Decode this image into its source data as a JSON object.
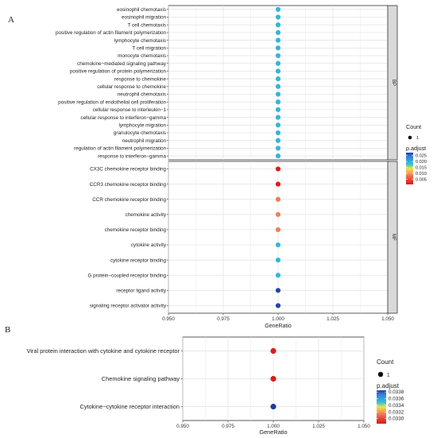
{
  "chart_data": [
    {
      "panel_letter": "A",
      "type": "scatter",
      "xlabel": "GeneRatio",
      "xlim": [
        0.95,
        1.05
      ],
      "xticks": [
        "0.950",
        "0.975",
        "1.000",
        "1.025",
        "1.050"
      ],
      "grid": true,
      "facets": [
        {
          "strip": "BP",
          "categories": [
            "eosinophil chemotaxis",
            "eosinophil migration",
            "T cell chemotaxis",
            "positive regulation of actin filament polymerization",
            "lymphocyte chemotaxis",
            "T cell migration",
            "monocyte chemotaxis",
            "chemokine−mediated signaling pathway",
            "positive regulation of protein polymerization",
            "response to chemokine",
            "cellular response to chemokine",
            "neutrophil chemotaxis",
            "positive regulation of endothelial cell proliferation",
            "cellular response to interleukin−1",
            "cellular response to interferon−gamma",
            "lymphocyte migration",
            "granulocyte chemotaxis",
            "neutrophil migration",
            "regulation of actin filament polymerization",
            "response to interferon−gamma"
          ],
          "gene_ratio": [
            1,
            1,
            1,
            1,
            1,
            1,
            1,
            1,
            1,
            1,
            1,
            1,
            1,
            1,
            1,
            1,
            1,
            1,
            1,
            1
          ],
          "p_adjust": [
            0.019,
            0.019,
            0.019,
            0.019,
            0.019,
            0.019,
            0.019,
            0.019,
            0.019,
            0.019,
            0.019,
            0.019,
            0.019,
            0.019,
            0.019,
            0.019,
            0.019,
            0.019,
            0.019,
            0.019
          ],
          "count": [
            1,
            1,
            1,
            1,
            1,
            1,
            1,
            1,
            1,
            1,
            1,
            1,
            1,
            1,
            1,
            1,
            1,
            1,
            1,
            1
          ]
        },
        {
          "strip": "MF",
          "categories": [
            "CX3C chemokine receptor binding",
            "CCR3 chemokine receptor binding",
            "CCR chemokine receptor binding",
            "chemokine activity",
            "chemokine receptor binding",
            "cytokine activity",
            "cytokine receptor binding",
            "G protein−coupled receptor binding",
            "receptor ligand activity",
            "signaling receptor activator activity"
          ],
          "gene_ratio": [
            1,
            1,
            1,
            1,
            1,
            1,
            1,
            1,
            1,
            1
          ],
          "p_adjust": [
            0.0005,
            0.0005,
            0.0085,
            0.0085,
            0.0085,
            0.019,
            0.019,
            0.019,
            0.027,
            0.027
          ],
          "count": [
            1,
            1,
            1,
            1,
            1,
            1,
            1,
            1,
            1,
            1
          ]
        }
      ],
      "legend": {
        "placement": "right",
        "size_title": "Count",
        "size_value": "1",
        "color_title": "p.adjust",
        "color_ticks": [
          "0.025",
          "0.020",
          "0.015",
          "0.010",
          "0.005"
        ],
        "color_tick_values": [
          0.025,
          0.02,
          0.015,
          0.01,
          0.005
        ],
        "color_range": [
          0.0005,
          0.0275
        ],
        "colors": [
          "#1f3b9e",
          "#3b7dd8",
          "#2aa7de",
          "#41c3d0",
          "#f0e442",
          "#f4a259",
          "#ee6a4e",
          "#e63a2e",
          "#dd1c1c"
        ]
      }
    },
    {
      "panel_letter": "B",
      "type": "scatter",
      "xlabel": "GeneRatio",
      "xlim": [
        0.95,
        1.05
      ],
      "xticks": [
        "0.950",
        "0.975",
        "1.000",
        "1.025",
        "1.050"
      ],
      "grid": true,
      "categories": [
        "Viral protein interaction with cytokine and cytokine receptor",
        "Chemokine signaling pathway",
        "Cytokine−cytokine receptor interaction"
      ],
      "gene_ratio": [
        1,
        1,
        1
      ],
      "p_adjust": [
        0.03285,
        0.03285,
        0.03385
      ],
      "count": [
        1,
        1,
        1
      ],
      "legend": {
        "placement": "right",
        "size_title": "Count",
        "size_value": "1",
        "color_title": "p.adjust",
        "color_ticks": [
          "0.0338",
          "0.0336",
          "0.0334",
          "0.0332",
          "0.0330"
        ],
        "color_tick_values": [
          0.0338,
          0.0336,
          0.0334,
          0.0332,
          0.033
        ],
        "color_range": [
          0.03285,
          0.03385
        ],
        "colors": [
          "#1f3b9e",
          "#3b7dd8",
          "#2aa7de",
          "#41c3d0",
          "#f0e442",
          "#f4a259",
          "#ee6a4e",
          "#e63a2e",
          "#dd1c1c"
        ]
      }
    }
  ]
}
